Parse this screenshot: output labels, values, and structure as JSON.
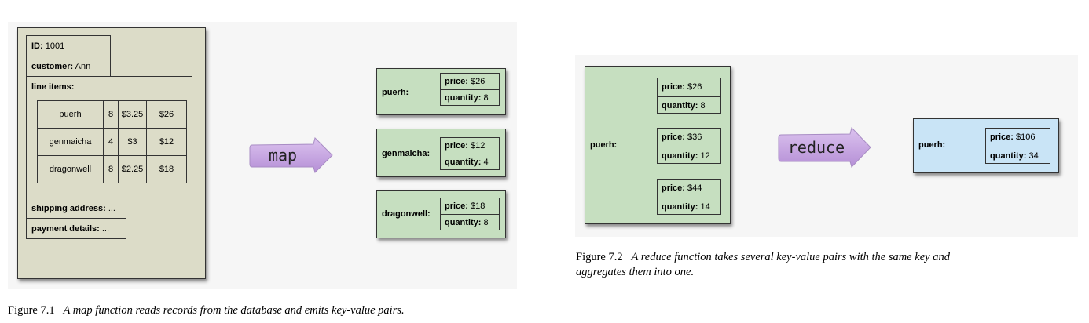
{
  "figure1": {
    "record": {
      "id_label": "ID:",
      "id_value": "1001",
      "customer_label": "customer:",
      "customer_value": "Ann",
      "line_items_label": "line items:",
      "line_items": [
        [
          "puerh",
          "8",
          "$3.25",
          "$26"
        ],
        [
          "genmaicha",
          "4",
          "$3",
          "$12"
        ],
        [
          "dragonwell",
          "8",
          "$2.25",
          "$18"
        ]
      ],
      "shipping_label": "shipping address:",
      "shipping_value": "...",
      "payment_label": "payment details:",
      "payment_value": "..."
    },
    "arrow_label": "map",
    "outputs": [
      {
        "key": "puerh:",
        "price_label": "price:",
        "price": "$26",
        "quantity_label": "quantity:",
        "quantity": "8"
      },
      {
        "key": "genmaicha:",
        "price_label": "price:",
        "price": "$12",
        "quantity_label": "quantity:",
        "quantity": "4"
      },
      {
        "key": "dragonwell:",
        "price_label": "price:",
        "price": "$18",
        "quantity_label": "quantity:",
        "quantity": "8"
      }
    ],
    "caption_num": "Figure 7.1",
    "caption_text": "A map function reads records from the database and emits key-value pairs."
  },
  "figure2": {
    "input_key": "puerh:",
    "inputs": [
      {
        "price_label": "price:",
        "price": "$26",
        "quantity_label": "quantity:",
        "quantity": "8"
      },
      {
        "price_label": "price:",
        "price": "$36",
        "quantity_label": "quantity:",
        "quantity": "12"
      },
      {
        "price_label": "price:",
        "price": "$44",
        "quantity_label": "quantity:",
        "quantity": "14"
      }
    ],
    "arrow_label": "reduce",
    "output": {
      "key": "puerh:",
      "price_label": "price:",
      "price": "$106",
      "quantity_label": "quantity:",
      "quantity": "34"
    },
    "caption_num": "Figure 7.2",
    "caption_line1": "A reduce function takes several key-value pairs with the same key and",
    "caption_line2": "aggregates them into one."
  },
  "colors": {
    "record_bg": "#dcdcc8",
    "kv_green": "#c6dfc0",
    "kv_blue": "#c9e4f6",
    "arrow_purple": "#c9a6e3"
  }
}
